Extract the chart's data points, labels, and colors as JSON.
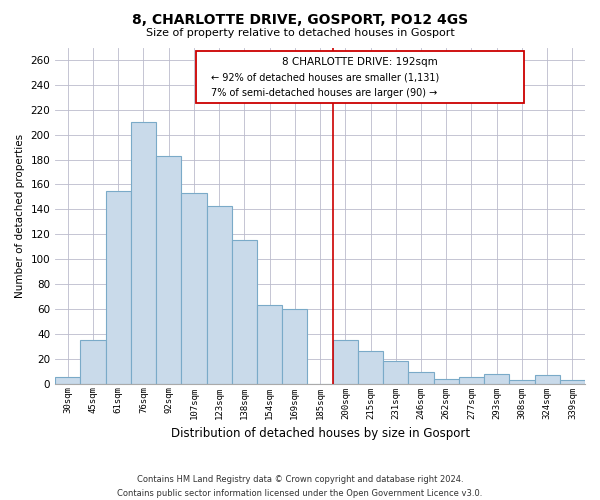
{
  "title": "8, CHARLOTTE DRIVE, GOSPORT, PO12 4GS",
  "subtitle": "Size of property relative to detached houses in Gosport",
  "xlabel": "Distribution of detached houses by size in Gosport",
  "ylabel": "Number of detached properties",
  "categories": [
    "30sqm",
    "45sqm",
    "61sqm",
    "76sqm",
    "92sqm",
    "107sqm",
    "123sqm",
    "138sqm",
    "154sqm",
    "169sqm",
    "185sqm",
    "200sqm",
    "215sqm",
    "231sqm",
    "246sqm",
    "262sqm",
    "277sqm",
    "293sqm",
    "308sqm",
    "324sqm",
    "339sqm"
  ],
  "values": [
    5,
    35,
    155,
    210,
    183,
    153,
    143,
    115,
    63,
    60,
    0,
    35,
    26,
    18,
    9,
    4,
    5,
    8,
    3,
    7,
    3
  ],
  "bar_color": "#c9daea",
  "bar_edge_color": "#7aaac8",
  "reference_line_color": "#cc0000",
  "annotation_title": "8 CHARLOTTE DRIVE: 192sqm",
  "annotation_line1": "← 92% of detached houses are smaller (1,131)",
  "annotation_line2": "7% of semi-detached houses are larger (90) →",
  "footer_line1": "Contains HM Land Registry data © Crown copyright and database right 2024.",
  "footer_line2": "Contains public sector information licensed under the Open Government Licence v3.0.",
  "ylim": [
    0,
    270
  ],
  "yticks": [
    0,
    20,
    40,
    60,
    80,
    100,
    120,
    140,
    160,
    180,
    200,
    220,
    240,
    260
  ],
  "background_color": "#ffffff",
  "grid_color": "#bbbbcc"
}
